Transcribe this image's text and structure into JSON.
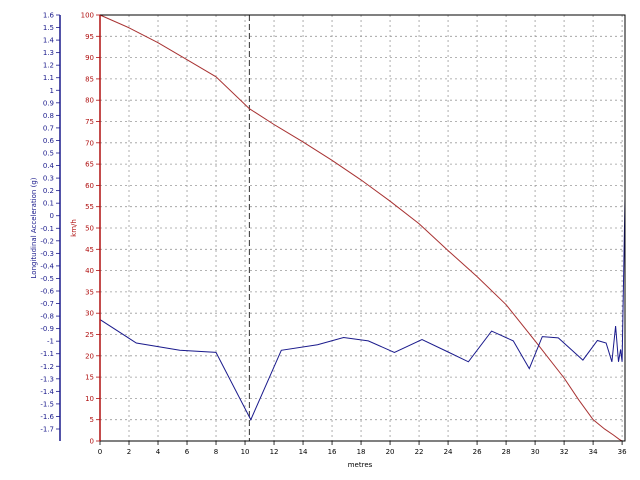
{
  "chart_data": {
    "type": "line",
    "xlabel": "metres",
    "x_ticks": [
      "0",
      "2",
      "4",
      "6",
      "8",
      "10",
      "12",
      "14",
      "16",
      "18",
      "20",
      "22",
      "24",
      "26",
      "28",
      "30",
      "32",
      "34",
      "36"
    ],
    "xlim": [
      0,
      36.2
    ],
    "grid": true,
    "cursor_x": 10.3,
    "axes": {
      "left_outer": {
        "label": "Longitudinal Acceleration (g)",
        "color": "#1a1a8c",
        "ticks": [
          "1.6",
          "1.5",
          "1.4",
          "1.3",
          "1.2",
          "1.1",
          "1",
          "0.9",
          "0.8",
          "0.7",
          "0.6",
          "0.5",
          "0.4",
          "0.3",
          "0.2",
          "0.1",
          "0",
          "-0.1",
          "-0.2",
          "-0.3",
          "-0.4",
          "-0.5",
          "-0.6",
          "-0.7",
          "-0.8",
          "-0.9",
          "-1",
          "-1.1",
          "-1.2",
          "-1.3",
          "-1.4",
          "-1.5",
          "-1.6",
          "-1.7"
        ]
      },
      "left_inner": {
        "label": "km/h",
        "color": "#b01010",
        "ylim": [
          0,
          100
        ],
        "ticks": [
          "100",
          "95",
          "90",
          "85",
          "80",
          "75",
          "70",
          "65",
          "60",
          "55",
          "50",
          "45",
          "40",
          "35",
          "30",
          "25",
          "20",
          "15",
          "10",
          "5",
          "0"
        ]
      }
    },
    "series": [
      {
        "axis": "left_inner",
        "color": "#a83232",
        "x": [
          0,
          2,
          4,
          6,
          8,
          10.3,
          12,
          14,
          16,
          18,
          20,
          22,
          24,
          26,
          28,
          30,
          32,
          33,
          34,
          34.8,
          35.4,
          35.8,
          36
        ],
        "y": [
          100,
          97,
          93.5,
          89.5,
          85.5,
          78,
          74.3,
          70.2,
          65.9,
          61.3,
          56.3,
          51,
          44.7,
          38.6,
          32,
          23.5,
          14.8,
          9.7,
          5,
          2.8,
          1.4,
          0.4,
          0
        ]
      },
      {
        "axis": "left_inner",
        "color": "#1a1a8c",
        "x": [
          0,
          2.5,
          5.5,
          8,
          10.4,
          12.5,
          15,
          16.8,
          18.5,
          20.3,
          22.2,
          24,
          25.4,
          27,
          28.5,
          29.6,
          30.5,
          31.6,
          33.3,
          34.3,
          34.9,
          35.3,
          35.55,
          35.75,
          35.9,
          36,
          36.2
        ],
        "y": [
          28.5,
          23,
          21.3,
          20.8,
          5,
          21.3,
          22.6,
          24.3,
          23.5,
          20.8,
          23.8,
          20.9,
          18.6,
          25.8,
          23.5,
          17,
          24.5,
          24.2,
          19,
          23.6,
          23,
          18.6,
          27,
          18.6,
          21.5,
          18.6,
          57
        ]
      }
    ]
  }
}
